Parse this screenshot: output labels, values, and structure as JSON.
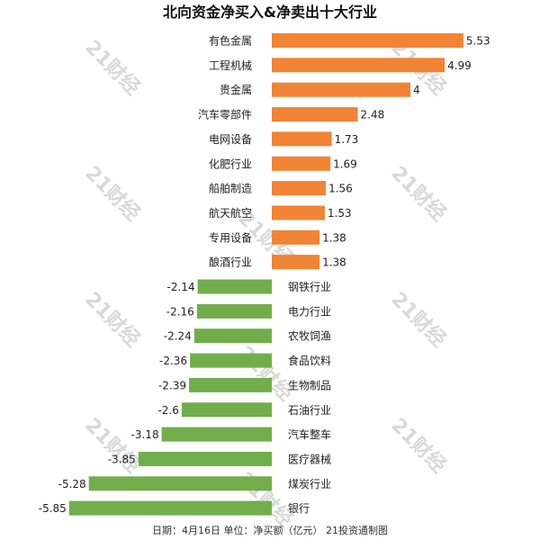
{
  "chart_data": {
    "type": "bar",
    "orientation": "horizontal",
    "title": "北向资金净买入&净卖出十大行业",
    "categories": [
      "有色金属",
      "工程机械",
      "贵金属",
      "汽车零部件",
      "电网设备",
      "化肥行业",
      "船舶制造",
      "航天航空",
      "专用设备",
      "酿酒行业",
      "钢铁行业",
      "电力行业",
      "农牧饲渔",
      "食品饮料",
      "生物制品",
      "石油行业",
      "汽车整车",
      "医疗器械",
      "煤炭行业",
      "银行"
    ],
    "values": [
      5.53,
      4.99,
      4,
      2.48,
      1.73,
      1.69,
      1.56,
      1.53,
      1.38,
      1.38,
      -2.14,
      -2.16,
      -2.24,
      -2.36,
      -2.39,
      -2.6,
      -3.18,
      -3.85,
      -5.28,
      -5.85
    ],
    "value_labels": [
      "5.53",
      "4.99",
      "4",
      "2.48",
      "1.73",
      "1.69",
      "1.56",
      "1.53",
      "1.38",
      "1.38",
      "-2.14",
      "-2.16",
      "-2.24",
      "-2.36",
      "-2.39",
      "-2.6",
      "-3.18",
      "-3.85",
      "-5.28",
      "-5.85"
    ],
    "xlim": [
      -6,
      6
    ],
    "grid": false,
    "colors": {
      "positive": "#f08434",
      "negative": "#72ad4c"
    },
    "footer": "日期：4月16日 单位：净买额（亿元） 21投资通制图",
    "watermark": "21财经"
  }
}
